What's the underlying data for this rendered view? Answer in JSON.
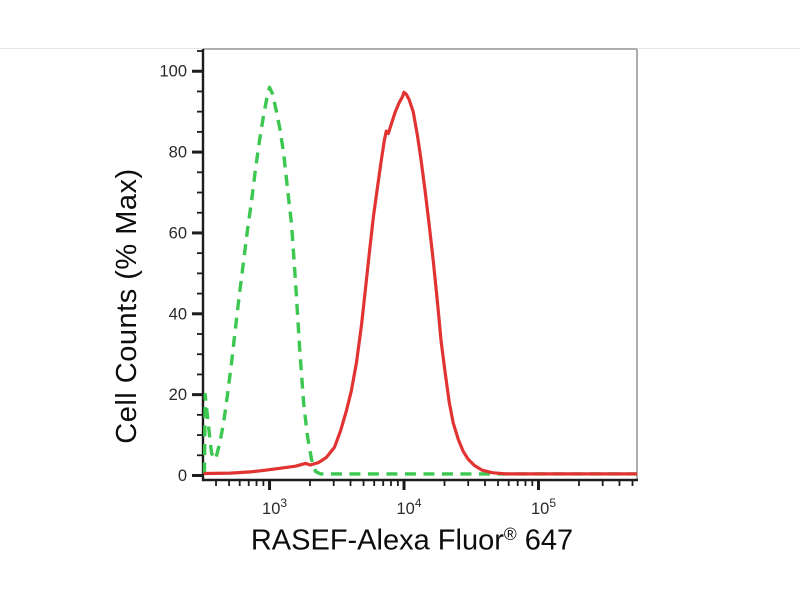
{
  "page": {
    "background": "#ffffff"
  },
  "chart": {
    "ylabel": "Cell Counts (% Max)",
    "xlabel_main": "RASEF-Alexa Fluor",
    "xlabel_sup": "®",
    "xlabel_suffix": " 647"
  },
  "chart_data": {
    "type": "line",
    "subtype": "flow-cytometry-histogram-overlay",
    "title": "",
    "xlabel": "RASEF-Alexa Fluor® 647",
    "ylabel": "Cell Counts (% Max)",
    "x_scale": "log10",
    "x_range": [
      320,
      540000
    ],
    "ylim": [
      0,
      105.5
    ],
    "grid": false,
    "legend": "none",
    "x_major_ticks": [
      {
        "value": 1000,
        "base": "10",
        "exp": "3"
      },
      {
        "value": 10000,
        "base": "10",
        "exp": "4"
      },
      {
        "value": 100000,
        "base": "10",
        "exp": "5"
      }
    ],
    "y_major_ticks": [
      0,
      20,
      40,
      60,
      80,
      100
    ],
    "y_minor_step": 5,
    "axis_colors": {
      "axis": "#1c1c1c",
      "border": "#999999",
      "tick_label": "#2b2b2b"
    },
    "series": [
      {
        "name": "green-dashed-histogram",
        "color": "#3cc850",
        "line_style": "dashed",
        "points": [
          [
            328,
            0.5
          ],
          [
            332,
            20
          ],
          [
            347,
            14
          ],
          [
            371,
            5.5
          ],
          [
            397,
            4
          ],
          [
            426,
            8
          ],
          [
            455,
            13
          ],
          [
            487,
            20
          ],
          [
            522,
            28
          ],
          [
            560,
            37
          ],
          [
            598,
            45
          ],
          [
            641,
            53
          ],
          [
            687,
            61
          ],
          [
            735,
            68
          ],
          [
            787,
            76
          ],
          [
            843,
            83
          ],
          [
            902,
            89
          ],
          [
            950,
            93
          ],
          [
            1000,
            96
          ],
          [
            1050,
            94.5
          ],
          [
            1110,
            91
          ],
          [
            1190,
            86
          ],
          [
            1270,
            80
          ],
          [
            1360,
            71
          ],
          [
            1460,
            62
          ],
          [
            1560,
            48
          ],
          [
            1670,
            32
          ],
          [
            1790,
            18
          ],
          [
            1910,
            10
          ],
          [
            2050,
            4
          ],
          [
            2200,
            1
          ],
          [
            2390,
            0.4
          ],
          [
            540000,
            0.4
          ]
        ]
      },
      {
        "name": "red-solid-histogram",
        "color": "#e23333",
        "line_style": "solid",
        "points": [
          [
            324,
            0.5
          ],
          [
            513,
            0.6
          ],
          [
            723,
            0.9
          ],
          [
            934,
            1.3
          ],
          [
            1210,
            1.8
          ],
          [
            1560,
            2.3
          ],
          [
            1850,
            3.0
          ],
          [
            2010,
            2.6
          ],
          [
            2310,
            3.2
          ],
          [
            2650,
            4.5
          ],
          [
            3040,
            7
          ],
          [
            3370,
            11
          ],
          [
            3730,
            16
          ],
          [
            4060,
            21
          ],
          [
            4430,
            28
          ],
          [
            4820,
            37
          ],
          [
            5160,
            46
          ],
          [
            5520,
            55
          ],
          [
            5920,
            64
          ],
          [
            6330,
            71
          ],
          [
            6780,
            78
          ],
          [
            7150,
            83
          ],
          [
            7380,
            85.2
          ],
          [
            7640,
            84.6
          ],
          [
            8050,
            87
          ],
          [
            8610,
            90
          ],
          [
            9230,
            92.3
          ],
          [
            9710,
            93.6
          ],
          [
            10000,
            94.8
          ],
          [
            10400,
            94.3
          ],
          [
            10900,
            93
          ],
          [
            11700,
            90
          ],
          [
            12600,
            84
          ],
          [
            13400,
            78
          ],
          [
            14400,
            70
          ],
          [
            15400,
            62
          ],
          [
            16500,
            53
          ],
          [
            17700,
            43
          ],
          [
            18900,
            33
          ],
          [
            20300,
            25
          ],
          [
            21700,
            18
          ],
          [
            23200,
            13
          ],
          [
            25300,
            9
          ],
          [
            27500,
            6
          ],
          [
            30000,
            4
          ],
          [
            33300,
            2.5
          ],
          [
            38100,
            1.3
          ],
          [
            45200,
            0.7
          ],
          [
            56500,
            0.4
          ],
          [
            540000,
            0.4
          ]
        ]
      }
    ]
  }
}
